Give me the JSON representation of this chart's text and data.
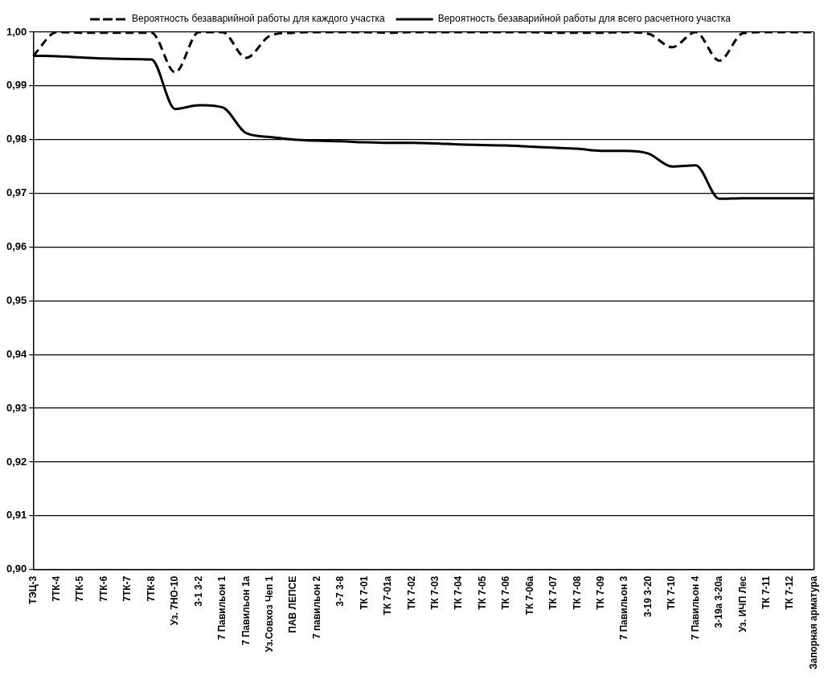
{
  "chart_data": {
    "type": "line",
    "categories": [
      "ТЭЦ-3",
      "7ТК-4",
      "7ТК-5",
      "7ТК-6",
      "7ТК-7",
      "7ТК-8",
      "Уз. 7НО-10",
      "3-1 3-2",
      "7 Павильон 1",
      "7 Павильон 1а",
      "Уз.Совхоз Чеп 1",
      "ПАВ ЛЕПСЕ",
      "7 павильон 2",
      "3-7 3-8",
      "ТК 7-01",
      "ТК 7-01а",
      "ТК 7-02",
      "ТК 7-03",
      "ТК 7-04",
      "ТК 7-05",
      "ТК 7-06",
      "ТК 7-06а",
      "ТК 7-07",
      "ТК 7-08",
      "ТК 7-09",
      "7 Павильон 3",
      "3-19 3-20",
      "ТК 7-10",
      "7 Павильон 4",
      "3-19а 3-20а",
      "Уз. ИЧП Лес",
      "ТК 7-11",
      "ТК 7-12",
      "Запорная арматура"
    ],
    "series": [
      {
        "name": "Вероятность безаварийной работы для каждого участка",
        "color": "#000000",
        "line_style": "dashed",
        "values": [
          0.9956,
          1.0,
          0.9999,
          0.9999,
          0.9999,
          0.9999,
          0.9925,
          1.0,
          1.0,
          0.9952,
          0.9993,
          0.9999,
          1.0,
          1.0,
          1.0,
          0.9999,
          1.0,
          1.0,
          1.0,
          1.0,
          1.0,
          1.0,
          0.9999,
          0.9999,
          0.9999,
          1.0,
          0.9997,
          0.9972,
          1.0,
          0.9947,
          0.9998,
          1.0,
          1.0,
          1.0
        ]
      },
      {
        "name": "Вероятность безаварийной работы для всего расчетного участка",
        "color": "#000000",
        "line_style": "solid",
        "values": [
          0.9956,
          0.9955,
          0.9953,
          0.9951,
          0.995,
          0.9949,
          0.9857,
          0.9864,
          0.986,
          0.9812,
          0.9805,
          0.98,
          0.9798,
          0.9797,
          0.9795,
          0.9794,
          0.9794,
          0.9793,
          0.9791,
          0.979,
          0.9789,
          0.9787,
          0.9785,
          0.9783,
          0.9779,
          0.9779,
          0.9774,
          0.975,
          0.9752,
          0.969,
          0.9691,
          0.9691,
          0.9691,
          0.9691
        ]
      }
    ],
    "ylim": [
      0.9,
      1.0
    ],
    "yticks": [
      {
        "value": 0.9,
        "label": "0,90"
      },
      {
        "value": 0.91,
        "label": "0,91"
      },
      {
        "value": 0.92,
        "label": "0,92"
      },
      {
        "value": 0.93,
        "label": "0,93"
      },
      {
        "value": 0.94,
        "label": "0,94"
      },
      {
        "value": 0.95,
        "label": "0,95"
      },
      {
        "value": 0.96,
        "label": "0,96"
      },
      {
        "value": 0.97,
        "label": "0,97"
      },
      {
        "value": 0.98,
        "label": "0,98"
      },
      {
        "value": 0.99,
        "label": "0,99"
      },
      {
        "value": 1.0,
        "label": "1,00"
      }
    ],
    "grid": "y",
    "legend": "top",
    "marker": "none"
  }
}
